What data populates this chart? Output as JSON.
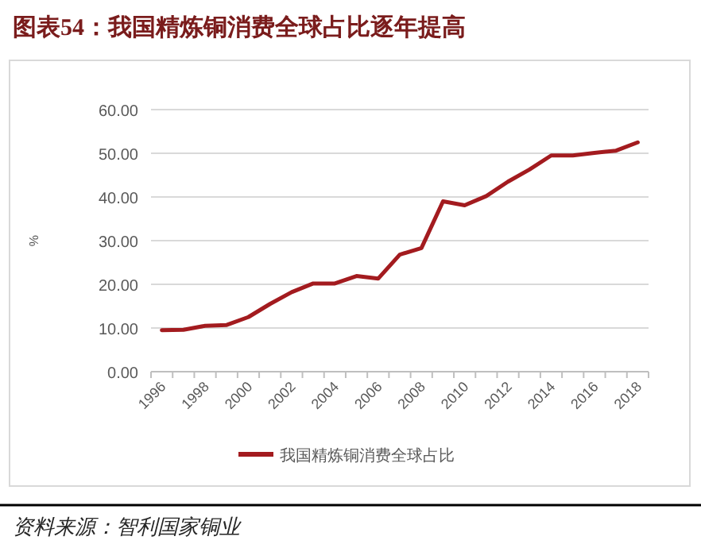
{
  "chart_data": {
    "type": "line",
    "title": "图表54：我国精炼铜消费全球占比逐年提高",
    "categories": [
      "1996",
      null,
      "1998",
      null,
      "2000",
      null,
      "2002",
      null,
      "2004",
      null,
      "2006",
      null,
      "2008",
      null,
      "2010",
      null,
      "2012",
      null,
      "2014",
      null,
      "2016",
      null,
      "2018"
    ],
    "series": [
      {
        "name": "我国精炼铜消费全球占比",
        "color": "#a31b1f",
        "values": [
          9.5,
          9.6,
          10.5,
          10.7,
          12.5,
          15.5,
          18.2,
          20.2,
          20.2,
          21.9,
          21.3,
          26.8,
          28.3,
          39.0,
          38.1,
          40.2,
          43.5,
          46.3,
          49.5,
          49.5,
          50.1,
          50.6,
          52.5
        ]
      }
    ],
    "ylabel": "%",
    "ylim": [
      0,
      60
    ],
    "yticks": [
      {
        "value": 0,
        "label": "0.00"
      },
      {
        "value": 10,
        "label": "10.00"
      },
      {
        "value": 20,
        "label": "20.00"
      },
      {
        "value": 30,
        "label": "30.00"
      },
      {
        "value": 40,
        "label": "40.00"
      },
      {
        "value": 50,
        "label": "50.00"
      },
      {
        "value": 60,
        "label": "60.00"
      }
    ],
    "grid": "y",
    "legend": "bottom",
    "marker": "none",
    "line_style": "solid",
    "annotations": [
      "资料来源：智利国家铜业"
    ]
  }
}
